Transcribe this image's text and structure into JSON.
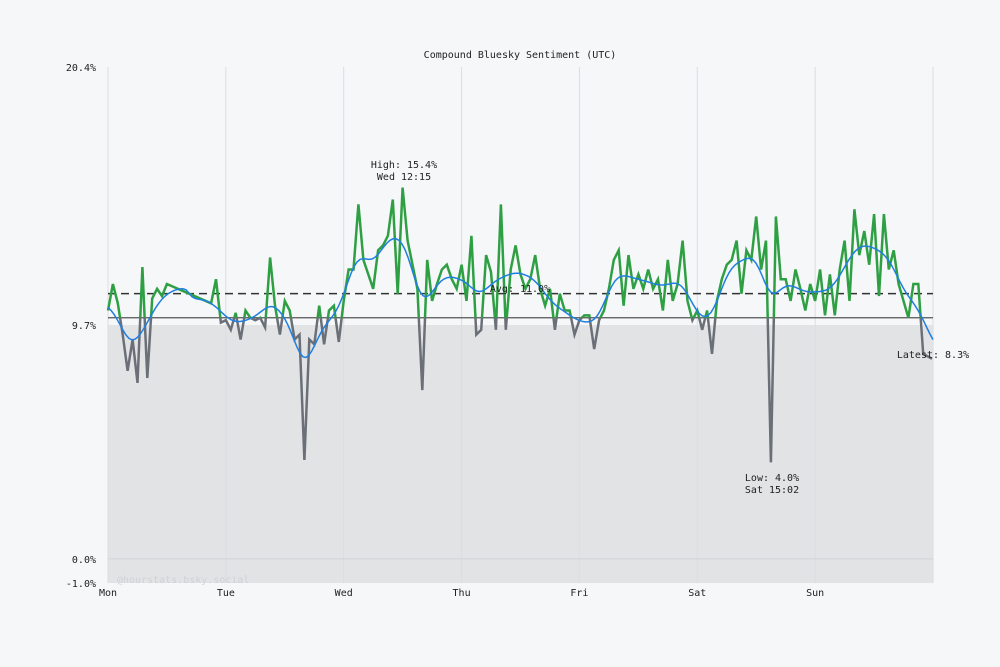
{
  "chart_data": {
    "type": "line",
    "title": "Compound Bluesky Sentiment (UTC)",
    "watermark": "@hourstats.bsky.social",
    "x_tick_labels": [
      "Mon",
      "Tue",
      "Wed",
      "Thu",
      "Fri",
      "Sat",
      "Sun"
    ],
    "y_tick_labels": [
      "20.4%",
      "9.7%",
      "0.0%",
      "-1.0%"
    ],
    "y_ticks": [
      20.4,
      9.7,
      0.0,
      -1.0
    ],
    "ylim": [
      -1.0,
      20.4
    ],
    "grid": true,
    "baseline_fill_level": 9.7,
    "reference_line": 10.0,
    "average": 11.0,
    "annotations": {
      "high": {
        "line1": "High: 15.4%",
        "line2": "Wed 12:15",
        "value": 15.4,
        "day": "Wed",
        "time": "12:15"
      },
      "low": {
        "line1": "Low: 4.0%",
        "line2": "Sat 15:02",
        "value": 4.0,
        "day": "Sat",
        "time": "15:02"
      },
      "avg": "Avg: 11.0%",
      "latest": "Latest: 8.3%"
    },
    "colors": {
      "above": "#2ea043",
      "below": "#6b7078",
      "trend": "#1f7fe0",
      "fill": "#e2e3e5",
      "background": "#f6f7f9"
    },
    "series": [
      {
        "day": "Mon",
        "hourly": [
          10.3,
          11.4,
          10.6,
          9.3,
          7.8,
          9.1,
          7.3,
          12.1,
          7.5,
          10.8,
          11.2,
          10.9,
          11.4,
          null,
          null,
          null,
          null,
          null,
          null,
          null,
          null,
          10.6,
          11.6,
          9.8
        ]
      },
      {
        "day": "Tue",
        "hourly": [
          9.9,
          9.5,
          10.2,
          9.1,
          10.3,
          10.0,
          9.9,
          10.0,
          9.6,
          12.5,
          10.5,
          9.3,
          10.7,
          10.3,
          9.1,
          9.3,
          4.1,
          9.1,
          8.9,
          10.5,
          8.9,
          10.3,
          10.5,
          9.0
        ]
      },
      {
        "day": "Wed",
        "hourly": [
          10.7,
          12.0,
          12.0,
          14.7,
          12.4,
          11.8,
          11.2,
          12.8,
          13.0,
          13.4,
          14.9,
          11.0,
          15.4,
          13.2,
          12.2,
          11.2,
          7.0,
          12.4,
          10.7,
          11.4,
          12.0,
          12.2,
          11.6,
          11.2
        ]
      },
      {
        "day": "Thu",
        "hourly": [
          12.2,
          10.7,
          13.4,
          9.3,
          9.5,
          12.6,
          11.9,
          9.5,
          14.7,
          9.5,
          12.0,
          13.0,
          11.8,
          11.2,
          11.6,
          12.6,
          11.2,
          10.5,
          11.2,
          9.5,
          11.0,
          10.3,
          10.3,
          9.3
        ]
      },
      {
        "day": "Fri",
        "hourly": [
          9.9,
          10.1,
          10.1,
          8.7,
          9.9,
          10.3,
          11.2,
          12.4,
          12.8,
          10.5,
          12.6,
          11.2,
          11.8,
          11.2,
          12.0,
          11.2,
          11.6,
          10.3,
          12.4,
          10.7,
          11.4,
          13.2,
          10.7,
          9.9
        ]
      },
      {
        "day": "Sat",
        "hourly": [
          10.3,
          9.5,
          10.3,
          8.5,
          10.7,
          11.6,
          12.2,
          12.4,
          13.2,
          11.0,
          12.8,
          12.4,
          14.2,
          12.0,
          13.2,
          4.0,
          14.2,
          11.6,
          11.6,
          10.7,
          12.0,
          11.2,
          10.3,
          11.4
        ]
      },
      {
        "day": "Sun",
        "hourly": [
          10.7,
          12.0,
          10.1,
          11.8,
          10.1,
          12.0,
          13.2,
          10.7,
          14.5,
          12.6,
          13.6,
          12.2,
          14.3,
          10.9,
          14.3,
          12.0,
          12.8,
          11.4,
          10.7,
          10.0,
          11.4,
          11.4,
          8.5,
          8.3
        ]
      }
    ]
  }
}
